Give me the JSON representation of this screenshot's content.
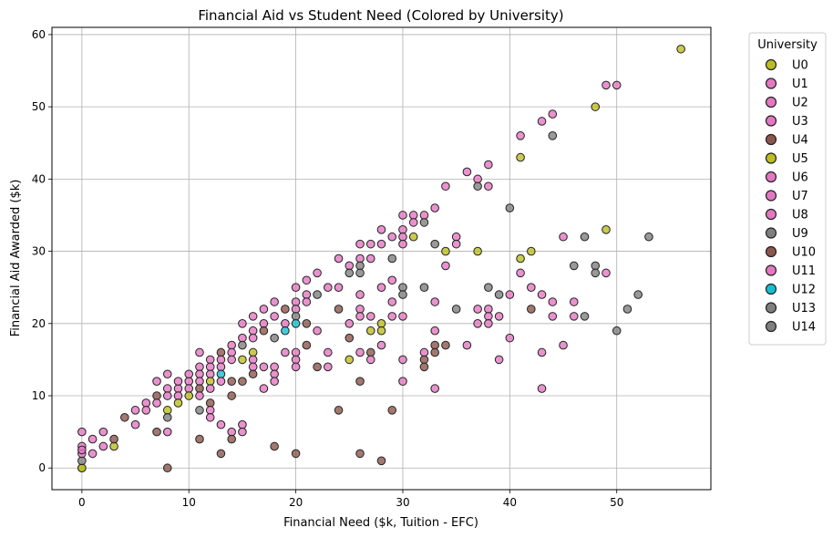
{
  "chart_data": {
    "type": "scatter",
    "title": "Financial Aid vs Student Need (Colored by University)",
    "xlabel": "Financial Need ($k, Tuition - EFC)",
    "ylabel": "Financial Aid Awarded ($k)",
    "xlim": [
      -2.8,
      58.8
    ],
    "ylim": [
      -3,
      61
    ],
    "xticks": [
      0,
      10,
      20,
      30,
      40,
      50
    ],
    "yticks": [
      0,
      10,
      20,
      30,
      40,
      50,
      60
    ],
    "grid": true,
    "legend": {
      "title": "University",
      "placement": "outside-right",
      "entries": [
        {
          "name": "U0",
          "color": "#bcbd22"
        },
        {
          "name": "U1",
          "color": "#e377c2"
        },
        {
          "name": "U2",
          "color": "#e377c2"
        },
        {
          "name": "U3",
          "color": "#e377c2"
        },
        {
          "name": "U4",
          "color": "#8c564b"
        },
        {
          "name": "U5",
          "color": "#bcbd22"
        },
        {
          "name": "U6",
          "color": "#e377c2"
        },
        {
          "name": "U7",
          "color": "#e377c2"
        },
        {
          "name": "U8",
          "color": "#e377c2"
        },
        {
          "name": "U9",
          "color": "#7f7f7f"
        },
        {
          "name": "U10",
          "color": "#8c564b"
        },
        {
          "name": "U11",
          "color": "#e377c2"
        },
        {
          "name": "U12",
          "color": "#17becf"
        },
        {
          "name": "U13",
          "color": "#7f7f7f"
        },
        {
          "name": "U14",
          "color": "#7f7f7f"
        }
      ]
    },
    "points": [
      [
        0,
        0,
        "#bcbd22"
      ],
      [
        0,
        0,
        "#bcbd22"
      ],
      [
        0,
        1,
        "#7f7f7f"
      ],
      [
        0,
        2,
        "#e377c2"
      ],
      [
        0,
        3,
        "#e377c2"
      ],
      [
        0,
        5,
        "#e377c2"
      ],
      [
        0,
        2.5,
        "#e377c2"
      ],
      [
        1,
        4,
        "#e377c2"
      ],
      [
        1,
        2,
        "#e377c2"
      ],
      [
        2,
        5,
        "#e377c2"
      ],
      [
        2,
        3,
        "#e377c2"
      ],
      [
        3,
        3,
        "#bcbd22"
      ],
      [
        3,
        4,
        "#8c564b"
      ],
      [
        4,
        7,
        "#8c564b"
      ],
      [
        5,
        8,
        "#e377c2"
      ],
      [
        5,
        6,
        "#e377c2"
      ],
      [
        6,
        9,
        "#e377c2"
      ],
      [
        6,
        8,
        "#e377c2"
      ],
      [
        7,
        10,
        "#8c564b"
      ],
      [
        7,
        12,
        "#e377c2"
      ],
      [
        7,
        9,
        "#e377c2"
      ],
      [
        7,
        5,
        "#8c564b"
      ],
      [
        8,
        11,
        "#e377c2"
      ],
      [
        8,
        13,
        "#e377c2"
      ],
      [
        8,
        8,
        "#bcbd22"
      ],
      [
        8,
        10,
        "#e377c2"
      ],
      [
        8,
        7,
        "#7f7f7f"
      ],
      [
        8,
        5,
        "#e377c2"
      ],
      [
        8,
        0,
        "#8c564b"
      ],
      [
        9,
        11,
        "#e377c2"
      ],
      [
        9,
        12,
        "#e377c2"
      ],
      [
        9,
        10,
        "#e377c2"
      ],
      [
        9,
        9,
        "#bcbd22"
      ],
      [
        10,
        12,
        "#e377c2"
      ],
      [
        10,
        13,
        "#e377c2"
      ],
      [
        10,
        11,
        "#e377c2"
      ],
      [
        10,
        10,
        "#bcbd22"
      ],
      [
        11,
        14,
        "#e377c2"
      ],
      [
        11,
        16,
        "#e377c2"
      ],
      [
        11,
        13,
        "#e377c2"
      ],
      [
        11,
        12,
        "#e377c2"
      ],
      [
        11,
        11,
        "#8c564b"
      ],
      [
        11,
        10,
        "#e377c2"
      ],
      [
        11,
        8,
        "#7f7f7f"
      ],
      [
        11,
        4,
        "#8c564b"
      ],
      [
        12,
        15,
        "#e377c2"
      ],
      [
        12,
        14,
        "#e377c2"
      ],
      [
        12,
        13,
        "#e377c2"
      ],
      [
        12,
        12,
        "#bcbd22"
      ],
      [
        12,
        11,
        "#e377c2"
      ],
      [
        12,
        9,
        "#8c564b"
      ],
      [
        12,
        8,
        "#e377c2"
      ],
      [
        12,
        7,
        "#e377c2"
      ],
      [
        13,
        16,
        "#8c564b"
      ],
      [
        13,
        15,
        "#e377c2"
      ],
      [
        13,
        14,
        "#e377c2"
      ],
      [
        13,
        13,
        "#17becf"
      ],
      [
        13,
        12,
        "#e377c2"
      ],
      [
        13,
        6,
        "#e377c2"
      ],
      [
        13,
        2,
        "#8c564b"
      ],
      [
        14,
        17,
        "#e377c2"
      ],
      [
        14,
        16,
        "#e377c2"
      ],
      [
        14,
        15,
        "#e377c2"
      ],
      [
        14,
        12,
        "#8c564b"
      ],
      [
        14,
        10,
        "#8c564b"
      ],
      [
        14,
        5,
        "#e377c2"
      ],
      [
        14,
        4,
        "#8c564b"
      ],
      [
        15,
        20,
        "#e377c2"
      ],
      [
        15,
        18,
        "#e377c2"
      ],
      [
        15,
        17,
        "#7f7f7f"
      ],
      [
        15,
        15,
        "#bcbd22"
      ],
      [
        15,
        12,
        "#8c564b"
      ],
      [
        15,
        6,
        "#e377c2"
      ],
      [
        15,
        5,
        "#e377c2"
      ],
      [
        16,
        21,
        "#e377c2"
      ],
      [
        16,
        19,
        "#e377c2"
      ],
      [
        16,
        18,
        "#e377c2"
      ],
      [
        16,
        16,
        "#bcbd22"
      ],
      [
        16,
        15,
        "#e377c2"
      ],
      [
        16,
        14,
        "#e377c2"
      ],
      [
        16,
        13,
        "#8c564b"
      ],
      [
        17,
        22,
        "#e377c2"
      ],
      [
        17,
        20,
        "#e377c2"
      ],
      [
        17,
        19,
        "#8c564b"
      ],
      [
        17,
        14,
        "#e377c2"
      ],
      [
        17,
        11,
        "#e377c2"
      ],
      [
        18,
        23,
        "#e377c2"
      ],
      [
        18,
        21,
        "#e377c2"
      ],
      [
        18,
        18,
        "#7f7f7f"
      ],
      [
        18,
        14,
        "#e377c2"
      ],
      [
        18,
        13,
        "#e377c2"
      ],
      [
        18,
        12,
        "#e377c2"
      ],
      [
        18,
        3,
        "#8c564b"
      ],
      [
        19,
        22,
        "#8c564b"
      ],
      [
        19,
        20,
        "#e377c2"
      ],
      [
        19,
        19,
        "#17becf"
      ],
      [
        19,
        16,
        "#e377c2"
      ],
      [
        20,
        25,
        "#e377c2"
      ],
      [
        20,
        23,
        "#e377c2"
      ],
      [
        20,
        22,
        "#e377c2"
      ],
      [
        20,
        21,
        "#7f7f7f"
      ],
      [
        20,
        20,
        "#17becf"
      ],
      [
        20,
        16,
        "#e377c2"
      ],
      [
        20,
        15,
        "#e377c2"
      ],
      [
        20,
        14,
        "#e377c2"
      ],
      [
        20,
        2,
        "#8c564b"
      ],
      [
        21,
        26,
        "#e377c2"
      ],
      [
        21,
        24,
        "#e377c2"
      ],
      [
        21,
        23,
        "#e377c2"
      ],
      [
        21,
        20,
        "#8c564b"
      ],
      [
        21,
        17,
        "#8c564b"
      ],
      [
        22,
        27,
        "#e377c2"
      ],
      [
        22,
        24,
        "#7f7f7f"
      ],
      [
        22,
        19,
        "#e377c2"
      ],
      [
        22,
        14,
        "#8c564b"
      ],
      [
        23,
        25,
        "#e377c2"
      ],
      [
        23,
        16,
        "#e377c2"
      ],
      [
        23,
        14,
        "#e377c2"
      ],
      [
        24,
        29,
        "#e377c2"
      ],
      [
        24,
        25,
        "#e377c2"
      ],
      [
        24,
        22,
        "#8c564b"
      ],
      [
        24,
        8,
        "#8c564b"
      ],
      [
        25,
        28,
        "#e377c2"
      ],
      [
        25,
        27,
        "#7f7f7f"
      ],
      [
        25,
        20,
        "#e377c2"
      ],
      [
        25,
        18,
        "#8c564b"
      ],
      [
        25,
        15,
        "#bcbd22"
      ],
      [
        26,
        31,
        "#e377c2"
      ],
      [
        26,
        29,
        "#e377c2"
      ],
      [
        26,
        28,
        "#7f7f7f"
      ],
      [
        26,
        27,
        "#7f7f7f"
      ],
      [
        26,
        24,
        "#e377c2"
      ],
      [
        26,
        22,
        "#e377c2"
      ],
      [
        26,
        21,
        "#e377c2"
      ],
      [
        26,
        16,
        "#e377c2"
      ],
      [
        26,
        12,
        "#8c564b"
      ],
      [
        26,
        2,
        "#8c564b"
      ],
      [
        27,
        31,
        "#e377c2"
      ],
      [
        27,
        29,
        "#e377c2"
      ],
      [
        27,
        21,
        "#e377c2"
      ],
      [
        27,
        19,
        "#bcbd22"
      ],
      [
        27,
        16,
        "#8c564b"
      ],
      [
        27,
        15,
        "#e377c2"
      ],
      [
        28,
        33,
        "#e377c2"
      ],
      [
        28,
        31,
        "#e377c2"
      ],
      [
        28,
        25,
        "#e377c2"
      ],
      [
        28,
        20,
        "#bcbd22"
      ],
      [
        28,
        19,
        "#bcbd22"
      ],
      [
        28,
        17,
        "#e377c2"
      ],
      [
        28,
        1,
        "#8c564b"
      ],
      [
        29,
        32,
        "#e377c2"
      ],
      [
        29,
        29,
        "#7f7f7f"
      ],
      [
        29,
        26,
        "#e377c2"
      ],
      [
        29,
        23,
        "#e377c2"
      ],
      [
        29,
        21,
        "#e377c2"
      ],
      [
        29,
        8,
        "#8c564b"
      ],
      [
        30,
        35,
        "#e377c2"
      ],
      [
        30,
        33,
        "#e377c2"
      ],
      [
        30,
        32,
        "#e377c2"
      ],
      [
        30,
        31,
        "#e377c2"
      ],
      [
        30,
        25,
        "#7f7f7f"
      ],
      [
        30,
        24,
        "#7f7f7f"
      ],
      [
        30,
        21,
        "#e377c2"
      ],
      [
        30,
        15,
        "#e377c2"
      ],
      [
        30,
        12,
        "#e377c2"
      ],
      [
        31,
        35,
        "#e377c2"
      ],
      [
        31,
        34,
        "#e377c2"
      ],
      [
        31,
        32,
        "#bcbd22"
      ],
      [
        32,
        35,
        "#e377c2"
      ],
      [
        32,
        34,
        "#7f7f7f"
      ],
      [
        32,
        25,
        "#7f7f7f"
      ],
      [
        32,
        16,
        "#e377c2"
      ],
      [
        32,
        15,
        "#8c564b"
      ],
      [
        32,
        14,
        "#8c564b"
      ],
      [
        33,
        36,
        "#e377c2"
      ],
      [
        33,
        31,
        "#7f7f7f"
      ],
      [
        33,
        23,
        "#e377c2"
      ],
      [
        33,
        19,
        "#e377c2"
      ],
      [
        33,
        17,
        "#8c564b"
      ],
      [
        33,
        16,
        "#8c564b"
      ],
      [
        33,
        11,
        "#e377c2"
      ],
      [
        34,
        39,
        "#e377c2"
      ],
      [
        34,
        30,
        "#bcbd22"
      ],
      [
        34,
        28,
        "#e377c2"
      ],
      [
        34,
        17,
        "#8c564b"
      ],
      [
        35,
        32,
        "#e377c2"
      ],
      [
        35,
        31,
        "#e377c2"
      ],
      [
        35,
        22,
        "#7f7f7f"
      ],
      [
        36,
        41,
        "#e377c2"
      ],
      [
        36,
        17,
        "#e377c2"
      ],
      [
        37,
        40,
        "#e377c2"
      ],
      [
        37,
        39,
        "#7f7f7f"
      ],
      [
        37,
        30,
        "#bcbd22"
      ],
      [
        37,
        22,
        "#e377c2"
      ],
      [
        37,
        20,
        "#e377c2"
      ],
      [
        38,
        42,
        "#e377c2"
      ],
      [
        38,
        39,
        "#e377c2"
      ],
      [
        38,
        25,
        "#7f7f7f"
      ],
      [
        38,
        22,
        "#e377c2"
      ],
      [
        38,
        21,
        "#e377c2"
      ],
      [
        38,
        20,
        "#e377c2"
      ],
      [
        39,
        24,
        "#7f7f7f"
      ],
      [
        39,
        21,
        "#e377c2"
      ],
      [
        39,
        15,
        "#e377c2"
      ],
      [
        40,
        36,
        "#7f7f7f"
      ],
      [
        40,
        24,
        "#e377c2"
      ],
      [
        40,
        18,
        "#e377c2"
      ],
      [
        41,
        46,
        "#e377c2"
      ],
      [
        41,
        43,
        "#bcbd22"
      ],
      [
        41,
        29,
        "#bcbd22"
      ],
      [
        41,
        27,
        "#e377c2"
      ],
      [
        42,
        30,
        "#bcbd22"
      ],
      [
        42,
        25,
        "#e377c2"
      ],
      [
        42,
        22,
        "#8c564b"
      ],
      [
        43,
        48,
        "#e377c2"
      ],
      [
        43,
        24,
        "#e377c2"
      ],
      [
        43,
        16,
        "#e377c2"
      ],
      [
        43,
        11,
        "#e377c2"
      ],
      [
        44,
        49,
        "#e377c2"
      ],
      [
        44,
        46,
        "#7f7f7f"
      ],
      [
        44,
        23,
        "#e377c2"
      ],
      [
        44,
        21,
        "#e377c2"
      ],
      [
        45,
        32,
        "#e377c2"
      ],
      [
        45,
        17,
        "#e377c2"
      ],
      [
        46,
        28,
        "#7f7f7f"
      ],
      [
        46,
        23,
        "#e377c2"
      ],
      [
        46,
        21,
        "#e377c2"
      ],
      [
        47,
        32,
        "#7f7f7f"
      ],
      [
        47,
        21,
        "#7f7f7f"
      ],
      [
        48,
        50,
        "#bcbd22"
      ],
      [
        48,
        28,
        "#7f7f7f"
      ],
      [
        48,
        27,
        "#7f7f7f"
      ],
      [
        49,
        53,
        "#e377c2"
      ],
      [
        49,
        33,
        "#bcbd22"
      ],
      [
        49,
        27,
        "#e377c2"
      ],
      [
        50,
        53,
        "#e377c2"
      ],
      [
        50,
        19,
        "#7f7f7f"
      ],
      [
        51,
        22,
        "#7f7f7f"
      ],
      [
        52,
        24,
        "#7f7f7f"
      ],
      [
        53,
        32,
        "#7f7f7f"
      ],
      [
        56,
        58,
        "#bcbd22"
      ]
    ]
  }
}
